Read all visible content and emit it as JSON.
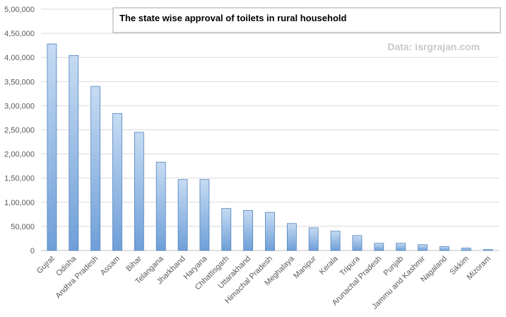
{
  "chart_data": {
    "type": "bar",
    "title": "The state wise approval of toilets in rural household",
    "annotation": "Data: isrgrajan.com",
    "xlabel": "",
    "ylabel": "",
    "ylim": [
      0,
      500000
    ],
    "yticks": [
      "0",
      "50,000",
      "1,00,000",
      "1,50,000",
      "2,00,000",
      "2,50,000",
      "3,00,000",
      "3,50,000",
      "4,00,000",
      "4,50,000",
      "5,00,000"
    ],
    "ytick_values": [
      0,
      50000,
      100000,
      150000,
      200000,
      250000,
      300000,
      350000,
      400000,
      450000,
      500000
    ],
    "grid": true,
    "legend": "none",
    "categories": [
      "Gujrat",
      "Odisha",
      "Andhra Pradesh",
      "Assam",
      "Bihar",
      "Telangana",
      "Jharkhand",
      "Haryana",
      "Chhattisgarh",
      "Uttarakhand",
      "Himachal Pradesh",
      "Meghalaya",
      "Manipur",
      "Kerala",
      "Tripura",
      "Arunachal Pradesh",
      "Punjab",
      "Jammu and Kashmir",
      "Nagaland",
      "Sikkim",
      "Mizoram"
    ],
    "values": [
      428000,
      404000,
      340000,
      284000,
      245000,
      183000,
      147000,
      147000,
      87000,
      83000,
      79000,
      56000,
      47000,
      40000,
      31000,
      15000,
      15000,
      12000,
      8000,
      5000,
      2000
    ]
  },
  "colors": {
    "bar_top": "#c6dbf2",
    "bar_bottom": "#6f9fd8",
    "bar_edge": "#4f81bd",
    "grid": "#d9d9d9",
    "axis": "#bfbfbf",
    "title_box_edge": "#a6a6a6"
  }
}
